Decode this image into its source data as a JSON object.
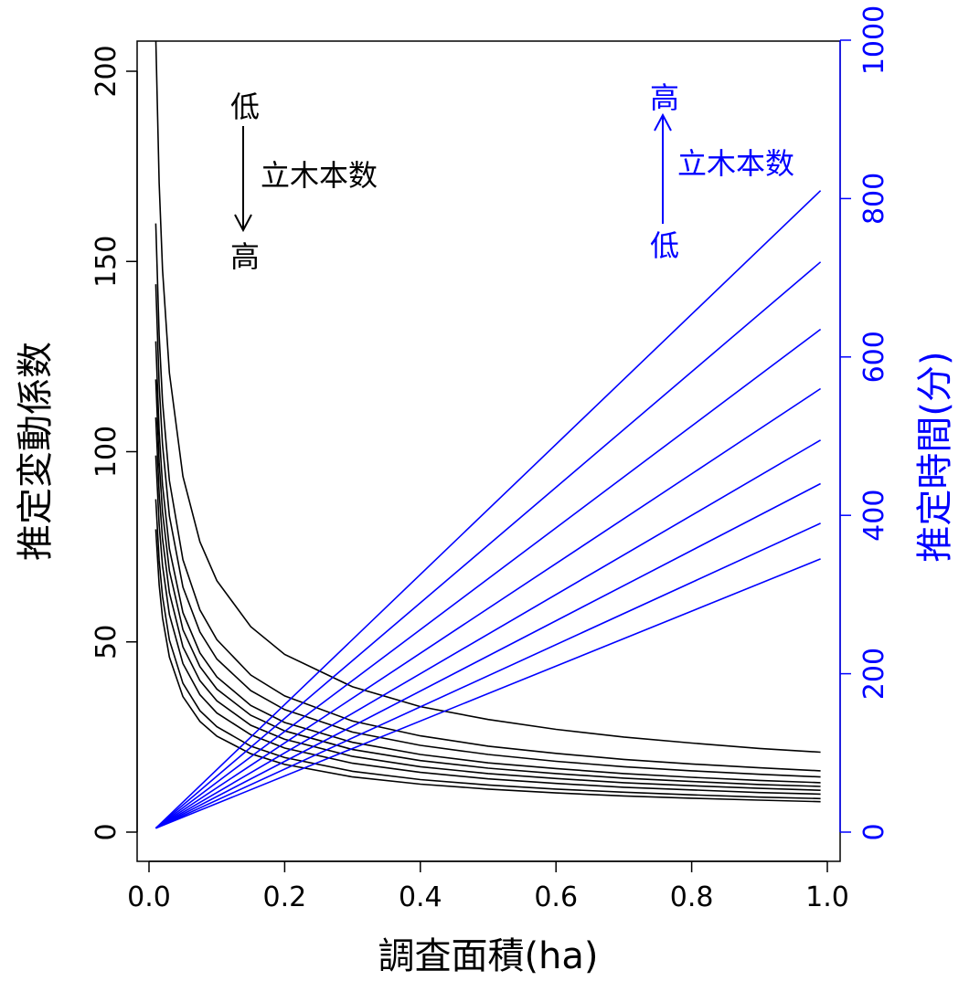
{
  "chart_data": {
    "type": "line",
    "xlabel": "調査面積(ha)",
    "ylabel_left": "推定変動係数",
    "ylabel_right": "推定時間(分)",
    "xlim": [
      0.0,
      1.0
    ],
    "ylim_left": [
      0,
      200
    ],
    "ylim_right": [
      0,
      1000
    ],
    "x_ticks": [
      "0.0",
      "0.2",
      "0.4",
      "0.6",
      "0.8",
      "1.0"
    ],
    "y_left_ticks": [
      "0",
      "50",
      "100",
      "150",
      "200"
    ],
    "y_right_ticks": [
      "0",
      "200",
      "400",
      "600",
      "800",
      "1000"
    ],
    "colors": {
      "left": "#000000",
      "right": "#0000ff"
    },
    "x": [
      0.01,
      0.015,
      0.02,
      0.03,
      0.05,
      0.075,
      0.1,
      0.15,
      0.2,
      0.3,
      0.4,
      0.5,
      0.6,
      0.7,
      0.8,
      0.9,
      0.99
    ],
    "cv_series": [
      {
        "values": [
          209.0,
          170.6,
          147.8,
          120.7,
          93.5,
          76.3,
          66.1,
          54.0,
          46.7,
          38.2,
          33.0,
          29.6,
          27.0,
          25.0,
          23.4,
          22.0,
          21.0
        ]
      },
      {
        "values": [
          160.0,
          130.6,
          113.1,
          92.4,
          71.6,
          58.4,
          50.6,
          41.3,
          35.8,
          29.2,
          25.3,
          22.6,
          20.7,
          19.1,
          17.9,
          16.9,
          16.1
        ]
      },
      {
        "values": [
          144.0,
          117.6,
          101.8,
          83.1,
          64.4,
          52.6,
          45.5,
          37.2,
          32.2,
          26.3,
          22.8,
          20.4,
          18.6,
          17.2,
          16.1,
          15.2,
          14.5
        ]
      },
      {
        "values": [
          129.0,
          105.3,
          91.2,
          74.5,
          57.7,
          47.1,
          40.8,
          33.3,
          28.8,
          23.6,
          20.4,
          18.2,
          16.7,
          15.4,
          14.4,
          13.6,
          13.0
        ]
      },
      {
        "values": [
          119.0,
          97.2,
          84.1,
          68.7,
          53.2,
          43.5,
          37.6,
          30.7,
          26.6,
          21.7,
          18.8,
          16.8,
          15.4,
          14.2,
          13.3,
          12.5,
          12.0
        ]
      },
      {
        "values": [
          109.0,
          89.0,
          77.1,
          62.9,
          48.7,
          39.8,
          34.5,
          28.1,
          24.4,
          19.9,
          17.2,
          15.4,
          14.1,
          13.0,
          12.2,
          11.5,
          11.0
        ]
      },
      {
        "values": [
          99.0,
          80.8,
          70.0,
          57.2,
          44.3,
          36.1,
          31.3,
          25.6,
          22.1,
          18.1,
          15.7,
          14.0,
          12.8,
          11.8,
          11.1,
          10.4,
          10.0
        ]
      },
      {
        "values": [
          87.5,
          71.4,
          61.9,
          50.5,
          39.1,
          31.9,
          27.7,
          22.6,
          19.6,
          16.0,
          13.8,
          12.4,
          11.3,
          10.5,
          9.8,
          9.2,
          8.8
        ]
      },
      {
        "values": [
          79.6,
          65.0,
          56.3,
          46.0,
          35.6,
          29.1,
          25.2,
          20.6,
          17.8,
          14.5,
          12.6,
          11.3,
          10.3,
          9.5,
          8.9,
          8.4,
          8.0
        ]
      }
    ],
    "time_x": [
      0.01,
      0.99
    ],
    "time_series": [
      {
        "values": [
          5,
          810
        ]
      },
      {
        "values": [
          5,
          720
        ]
      },
      {
        "values": [
          5,
          635
        ]
      },
      {
        "values": [
          5,
          560
        ]
      },
      {
        "values": [
          5,
          495
        ]
      },
      {
        "values": [
          5,
          440
        ]
      },
      {
        "values": [
          5,
          390
        ]
      },
      {
        "values": [
          5,
          345
        ]
      }
    ],
    "annotations": {
      "left_low": "低",
      "left_high": "高",
      "left_label": "立木本数",
      "right_high": "高",
      "right_low": "低",
      "right_label": "立木本数"
    }
  }
}
